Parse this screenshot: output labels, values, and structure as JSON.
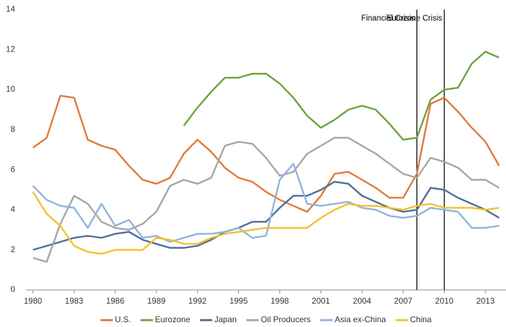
{
  "chart_data": {
    "type": "line",
    "x": [
      1980,
      1981,
      1982,
      1983,
      1984,
      1985,
      1986,
      1987,
      1988,
      1989,
      1990,
      1991,
      1992,
      1993,
      1994,
      1995,
      1996,
      1997,
      1998,
      1999,
      2000,
      2001,
      2002,
      2003,
      2004,
      2005,
      2006,
      2007,
      2008,
      2009,
      2010,
      2011,
      2012,
      2013,
      2014
    ],
    "xlim": [
      1979.5,
      2014.5
    ],
    "xticks": [
      1980,
      1983,
      1986,
      1989,
      1992,
      1995,
      1998,
      2001,
      2004,
      2007,
      2010,
      2013
    ],
    "ylim": [
      0,
      14
    ],
    "yticks": [
      0,
      2,
      4,
      6,
      8,
      10,
      12,
      14
    ],
    "series": [
      {
        "name": "U.S.",
        "color": "#e07b39",
        "values": [
          7.1,
          7.6,
          9.7,
          9.6,
          7.5,
          7.2,
          7.0,
          6.2,
          5.5,
          5.3,
          5.6,
          6.8,
          7.5,
          6.9,
          6.1,
          5.6,
          5.4,
          4.9,
          4.5,
          4.2,
          3.9,
          4.7,
          5.8,
          5.9,
          5.5,
          5.1,
          4.6,
          4.6,
          5.8,
          9.3,
          9.6,
          8.9,
          8.1,
          7.4,
          6.2
        ]
      },
      {
        "name": "Eurozone",
        "color": "#6ca33a",
        "values": [
          null,
          null,
          null,
          null,
          null,
          null,
          null,
          null,
          null,
          null,
          null,
          8.2,
          9.1,
          9.9,
          10.6,
          10.6,
          10.8,
          10.8,
          10.3,
          9.6,
          8.7,
          8.1,
          8.5,
          9.0,
          9.2,
          9.0,
          8.3,
          7.5,
          7.6,
          9.5,
          10.0,
          10.1,
          11.3,
          11.9,
          11.6
        ]
      },
      {
        "name": "Japan",
        "color": "#4f6f9a",
        "values": [
          2.0,
          2.2,
          2.4,
          2.6,
          2.7,
          2.6,
          2.8,
          2.9,
          2.5,
          2.3,
          2.1,
          2.1,
          2.2,
          2.5,
          2.9,
          3.1,
          3.4,
          3.4,
          4.1,
          4.7,
          4.7,
          5.0,
          5.4,
          5.3,
          4.7,
          4.4,
          4.1,
          3.9,
          4.0,
          5.1,
          5.0,
          4.6,
          4.3,
          4.0,
          3.6
        ]
      },
      {
        "name": "Oil Producers",
        "color": "#a6a6a6",
        "values": [
          1.6,
          1.4,
          3.3,
          4.7,
          4.3,
          3.4,
          3.1,
          3.0,
          3.3,
          3.9,
          5.2,
          5.5,
          5.3,
          5.6,
          7.2,
          7.4,
          7.3,
          6.6,
          5.7,
          5.9,
          6.8,
          7.2,
          7.6,
          7.6,
          7.2,
          6.8,
          6.3,
          5.8,
          5.6,
          6.6,
          6.4,
          6.1,
          5.5,
          5.5,
          5.1
        ]
      },
      {
        "name": "Asia ex-China",
        "color": "#8fb4dc",
        "values": [
          5.2,
          4.5,
          4.2,
          4.1,
          3.1,
          4.3,
          3.2,
          3.5,
          2.6,
          2.7,
          2.4,
          2.6,
          2.8,
          2.8,
          2.9,
          3.1,
          2.6,
          2.7,
          5.5,
          6.3,
          4.3,
          4.2,
          4.3,
          4.4,
          4.1,
          4.0,
          3.7,
          3.6,
          3.7,
          4.1,
          4.0,
          3.9,
          3.1,
          3.1,
          3.2
        ]
      },
      {
        "name": "China",
        "color": "#f2c12e",
        "values": [
          4.9,
          3.8,
          3.2,
          2.2,
          1.9,
          1.8,
          2.0,
          2.0,
          2.0,
          2.6,
          2.5,
          2.3,
          2.3,
          2.6,
          2.8,
          2.9,
          3.0,
          3.1,
          3.1,
          3.1,
          3.1,
          3.6,
          4.0,
          4.3,
          4.2,
          4.2,
          4.1,
          4.0,
          4.2,
          4.3,
          4.1,
          4.1,
          4.1,
          4.0,
          4.1
        ]
      }
    ],
    "annotations": [
      {
        "text": "Financial Crisis",
        "x": 2008
      },
      {
        "text": "Eurozone Crisis",
        "x": 2010
      }
    ],
    "legend": "bottom"
  }
}
